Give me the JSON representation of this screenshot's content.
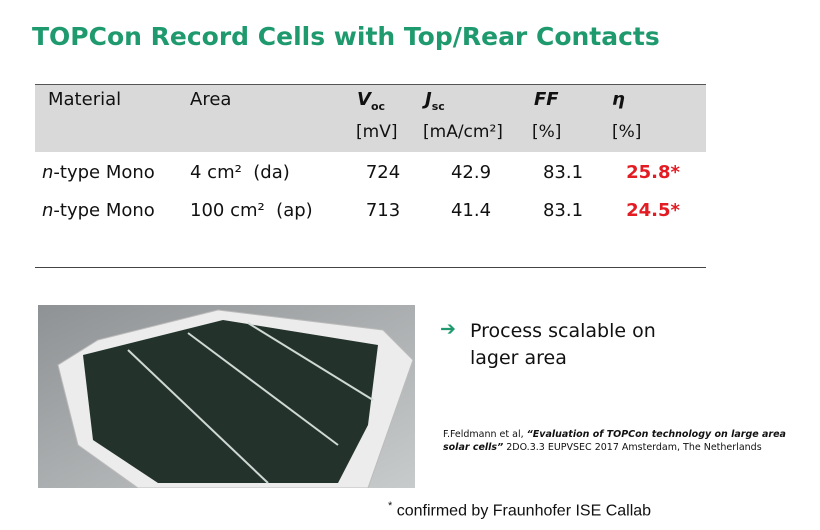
{
  "header": {
    "title": "TOPCon Record Cells with Top/Rear Contacts"
  },
  "table": {
    "columns": [
      {
        "label": "Material"
      },
      {
        "label": "Area"
      },
      {
        "symbol": "V",
        "sub": "oc",
        "unit": "[mV]"
      },
      {
        "symbol": "J",
        "sub": "sc",
        "unit": "[mA/cm²]"
      },
      {
        "symbol": "FF",
        "unit": "[%]"
      },
      {
        "symbol": "η",
        "unit": "[%]"
      }
    ],
    "rows": [
      [
        {
          "italic": "n",
          "text": "-type Mono"
        },
        "4 cm²  (da)",
        "724",
        "42.9",
        "83.1",
        "25.8*"
      ],
      [
        {
          "italic": "n",
          "text": "-type Mono"
        },
        "100 cm²  (ap)",
        "713",
        "41.4",
        "83.1",
        "24.5*"
      ]
    ]
  },
  "bullet": "Process scalable on lager area",
  "citation": {
    "author": "F.Feldmann et al, ",
    "title": "“Evaluation of TOPCon technology on large area solar cells”",
    "details": " 2DO.3.3 EUPVSEC 2017 Amsterdam, The Netherlands"
  },
  "footnote": {
    "mark": "*",
    "text": " confirmed by Fraunhofer ISE Callab"
  }
}
